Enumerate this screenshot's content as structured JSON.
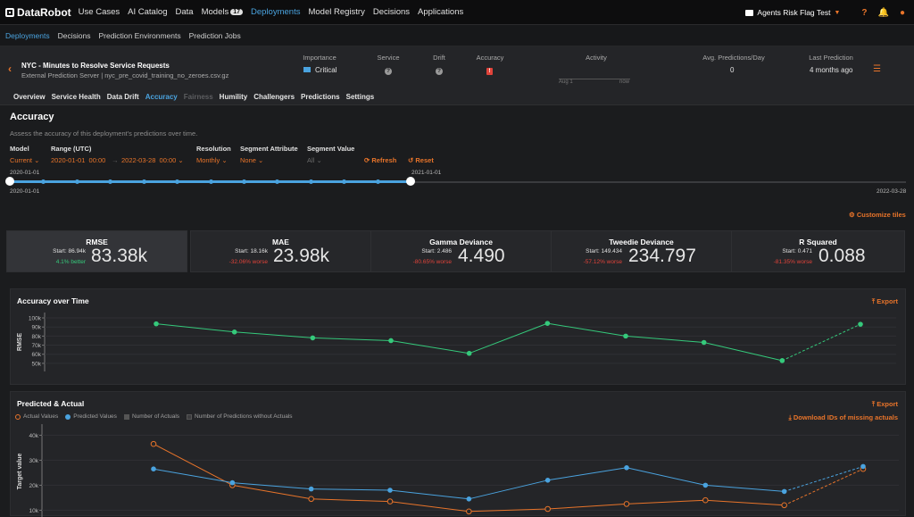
{
  "app": {
    "logo": "DataRobot",
    "nav": [
      {
        "label": "Use Cases"
      },
      {
        "label": "AI Catalog"
      },
      {
        "label": "Data"
      },
      {
        "label": "Models",
        "badge": "17"
      },
      {
        "label": "Deployments",
        "active": true
      },
      {
        "label": "Model Registry"
      },
      {
        "label": "Decisions"
      },
      {
        "label": "Applications"
      }
    ],
    "project": "Agents Risk Flag Test",
    "help_icon": "question-icon",
    "notif_icon": "bell-icon",
    "user_icon": "user-icon"
  },
  "subnav": [
    "Deployments",
    "Decisions",
    "Prediction Environments",
    "Prediction Jobs"
  ],
  "deployment": {
    "title": "NYC - Minutes to Resolve Service Requests",
    "subtitle": "External Prediction Server | nyc_pre_covid_training_no_zeroes.csv.gz",
    "cols": {
      "importance": {
        "label": "Importance",
        "value": "Critical"
      },
      "service": {
        "label": "Service"
      },
      "drift": {
        "label": "Drift"
      },
      "accuracy": {
        "label": "Accuracy"
      },
      "activity": {
        "label": "Activity",
        "start": "Aug 1",
        "end": "now"
      },
      "avg_pred": {
        "label": "Avg. Predictions/Day",
        "value": "0"
      },
      "last_pred": {
        "label": "Last Prediction",
        "value": "4 months ago"
      }
    }
  },
  "tabs": [
    {
      "label": "Overview"
    },
    {
      "label": "Service Health"
    },
    {
      "label": "Data Drift"
    },
    {
      "label": "Accuracy",
      "active": true
    },
    {
      "label": "Fairness",
      "disabled": true
    },
    {
      "label": "Humility"
    },
    {
      "label": "Challengers"
    },
    {
      "label": "Predictions"
    },
    {
      "label": "Settings"
    }
  ],
  "accuracy": {
    "title": "Accuracy",
    "description": "Assess the accuracy of this deployment's predictions over time.",
    "filters": {
      "model": {
        "label": "Model",
        "value": "Current"
      },
      "range": {
        "label": "Range (UTC)",
        "start_date": "2020-01-01",
        "start_time": "00:00",
        "arrow": "→",
        "end_date": "2022-03-28",
        "end_time": "00:00"
      },
      "resolution": {
        "label": "Resolution",
        "value": "Monthly"
      },
      "segment_attr": {
        "label": "Segment Attribute",
        "value": "None"
      },
      "segment_val": {
        "label": "Segment Value",
        "value": "All"
      }
    },
    "refresh": "Refresh",
    "reset": "Reset",
    "slider": {
      "start_top": "2020-01-01",
      "handle_label": "2021-01-01",
      "min": "2020-01-01",
      "max": "2022-03-28",
      "selected_fraction": 0.447
    },
    "customize": "Customize tiles"
  },
  "tiles": [
    {
      "name": "RMSE",
      "start": "Start: 86.94k",
      "delta": "4.1% better",
      "trend": "better",
      "value": "83.38k",
      "selected": true
    },
    {
      "name": "MAE",
      "start": "Start: 18.16k",
      "delta": "-32.06% worse",
      "trend": "worse",
      "value": "23.98k"
    },
    {
      "name": "Gamma Deviance",
      "start": "Start: 2.486",
      "delta": "-80.65% worse",
      "trend": "worse",
      "value": "4.490"
    },
    {
      "name": "Tweedie Deviance",
      "start": "Start: 149.434",
      "delta": "-57.12% worse",
      "trend": "worse",
      "value": "234.797"
    },
    {
      "name": "R Squared",
      "start": "Start: 0.471",
      "delta": "-81.35% worse",
      "trend": "worse",
      "value": "0.088"
    }
  ],
  "panels": {
    "aot": {
      "title": "Accuracy over Time",
      "export": "Export"
    },
    "pa": {
      "title": "Predicted & Actual",
      "export": "Export",
      "download": "Download IDs of missing actuals",
      "legend": [
        "Actual Values",
        "Predicted Values",
        "Number of Actuals",
        "Number of Predictions without Actuals"
      ]
    }
  },
  "chart_data": [
    {
      "type": "line",
      "ylabel": "RMSE",
      "yticks": [
        "100k",
        "90k",
        "80k",
        "70k",
        "60k",
        "50k"
      ],
      "ylim": [
        45000,
        102000
      ],
      "grid": true,
      "series": [
        {
          "color": "#35c97b",
          "values": [
            93500,
            84500,
            78000,
            75000,
            61000,
            94000,
            80000,
            73000,
            53000,
            93000
          ],
          "dashed_last_segment": true
        }
      ]
    },
    {
      "type": "line",
      "ylabel": "Target value",
      "yticks": [
        "40k",
        "30k",
        "20k",
        "10k"
      ],
      "ylim": [
        8000,
        43000
      ],
      "grid": true,
      "series": [
        {
          "name": "Actual Values",
          "color": "#e8742a",
          "values": [
            36500,
            20000,
            14500,
            13500,
            9500,
            10500,
            12500,
            14000,
            12000,
            26500
          ],
          "dashed_last_segment": true
        },
        {
          "name": "Predicted Values",
          "color": "#4aa3df",
          "values": [
            26500,
            21000,
            18500,
            18000,
            14500,
            22000,
            27000,
            20000,
            17500,
            27500
          ],
          "dashed_last_segment": true
        }
      ]
    }
  ]
}
